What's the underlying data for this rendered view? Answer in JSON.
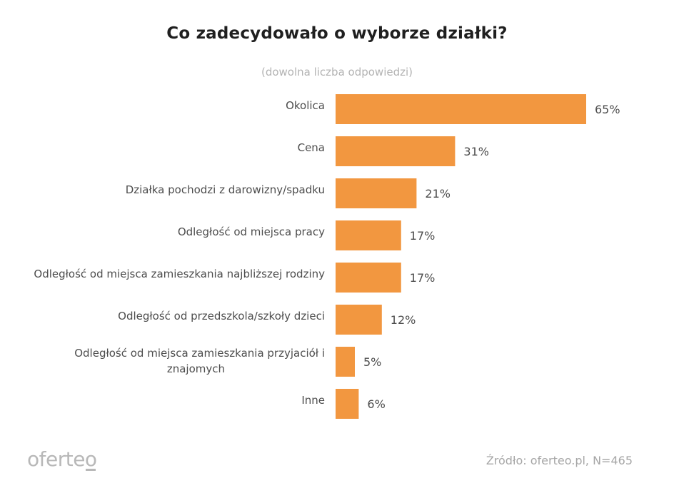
{
  "title": "Co zadecydowało o wyborze działki?",
  "subtitle": "(dowolna liczba odpowiedzi)",
  "logo": "oferteo",
  "source": "Źródło: oferteo.pl, N=465",
  "colors": {
    "bar": "#F29740"
  },
  "chart_data": {
    "type": "bar",
    "orientation": "horizontal",
    "title": "Co zadecydowało o wyborze działki?",
    "subtitle": "(dowolna liczba odpowiedzi)",
    "unit": "%",
    "xlim": [
      0,
      65
    ],
    "grid": false,
    "categories": [
      "Okolica",
      "Cena",
      "Działka pochodzi z darowizny/spadku",
      "Odległość od miejsca pracy",
      "Odległość od miejsca zamieszkania najbliższej rodziny",
      "Odległość od przedszkola/szkoły dzieci",
      "Odległość od miejsca zamieszkania przyjaciół i znajomych",
      "Inne"
    ],
    "values": [
      65,
      31,
      21,
      17,
      17,
      12,
      5,
      6
    ],
    "value_labels": [
      "65%",
      "31%",
      "21%",
      "17%",
      "17%",
      "12%",
      "5%",
      "6%"
    ]
  }
}
